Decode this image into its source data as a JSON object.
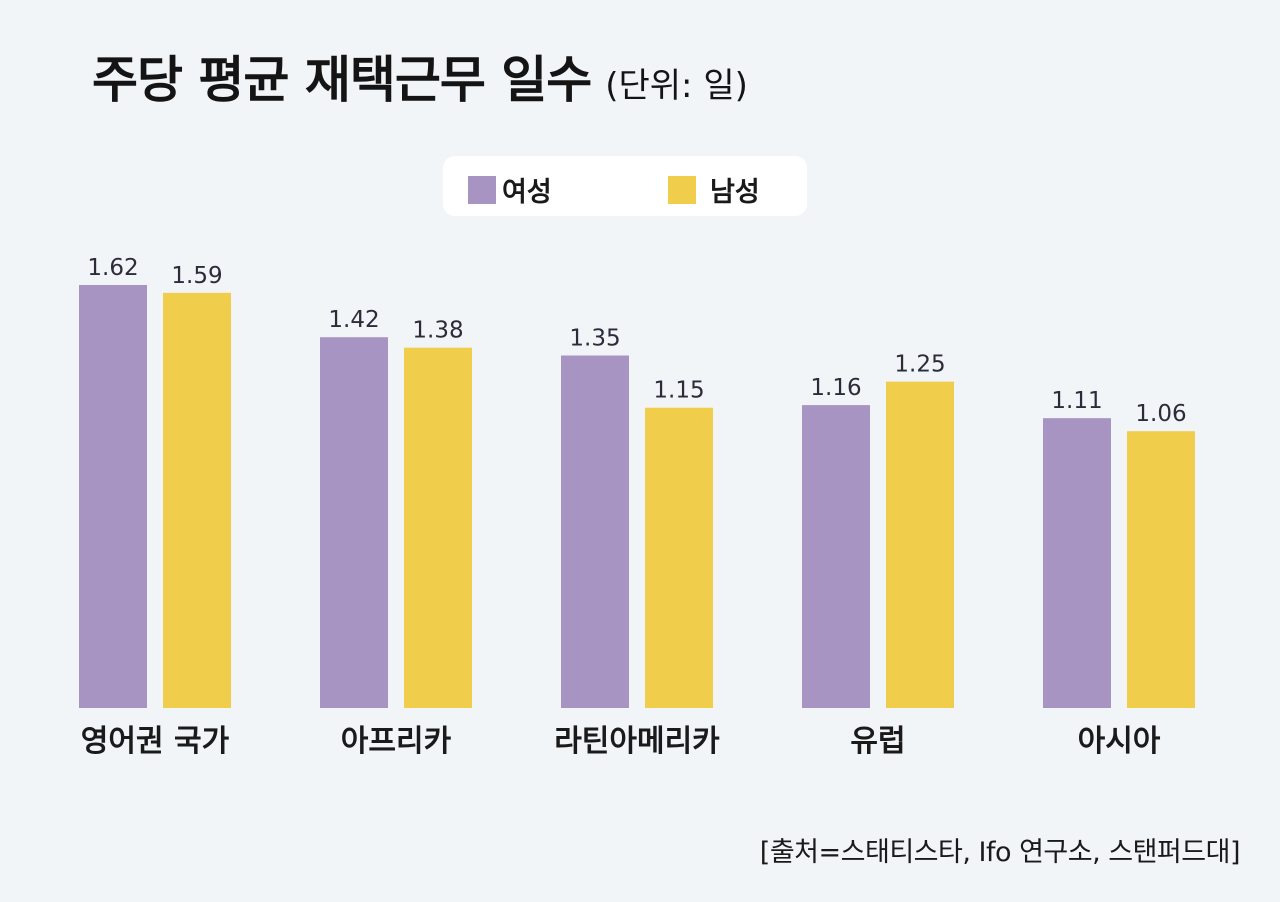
{
  "title": "주당 평균 재택근무 일수",
  "unit": "(단위: 일)",
  "legend": {
    "women": "여성",
    "men": "남성"
  },
  "source": "[출처=스태티스타, Ifo 연구소, 스탠퍼드대]",
  "colors": {
    "women": "#a894c3",
    "men": "#f0cd4b",
    "background": "#f2f5f8"
  },
  "chart_data": {
    "type": "bar",
    "categories": [
      "영어권 국가",
      "아프리카",
      "라틴아메리카",
      "유럽",
      "아시아"
    ],
    "series": [
      {
        "name": "여성",
        "values": [
          1.62,
          1.42,
          1.35,
          1.16,
          1.11
        ]
      },
      {
        "name": "남성",
        "values": [
          1.59,
          1.38,
          1.15,
          1.25,
          1.06
        ]
      }
    ],
    "title": "주당 평균 재택근무 일수",
    "xlabel": "",
    "ylabel": "",
    "ylim": [
      0,
      1.62
    ],
    "grid": false,
    "legend_position": "top-center"
  }
}
